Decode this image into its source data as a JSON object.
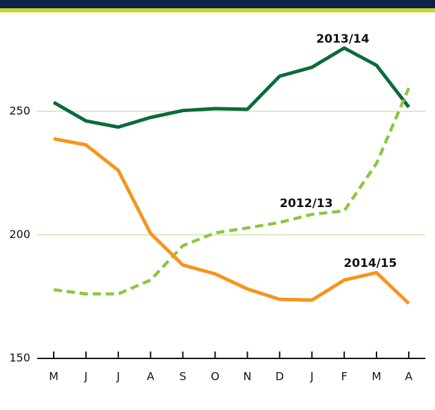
{
  "chart_data": {
    "type": "line",
    "categories": [
      "M",
      "J",
      "J",
      "A",
      "S",
      "O",
      "N",
      "D",
      "J",
      "F",
      "M",
      "A"
    ],
    "series": [
      {
        "name": "2013/14",
        "color": "#0b6b3a",
        "dashed": false,
        "values": [
          253.6,
          246.1,
          243.6,
          247.5,
          250.3,
          251.1,
          250.8,
          264.2,
          267.8,
          275.6,
          268.6,
          251.7
        ]
      },
      {
        "name": "2012/13",
        "color": "#8dc63f",
        "dashed": true,
        "values": [
          177.8,
          176.1,
          176.1,
          181.7,
          195.6,
          200.8,
          202.8,
          205.0,
          208.3,
          209.7,
          228.9,
          259.4
        ]
      },
      {
        "name": "2014/15",
        "color": "#f7941d",
        "dashed": false,
        "values": [
          238.9,
          236.4,
          226.1,
          200.6,
          187.8,
          184.2,
          178.1,
          173.9,
          173.6,
          181.7,
          184.7,
          172.2
        ]
      }
    ],
    "ylim": [
      150,
      280
    ],
    "yticks": [
      150,
      200,
      250
    ],
    "grid": true
  }
}
